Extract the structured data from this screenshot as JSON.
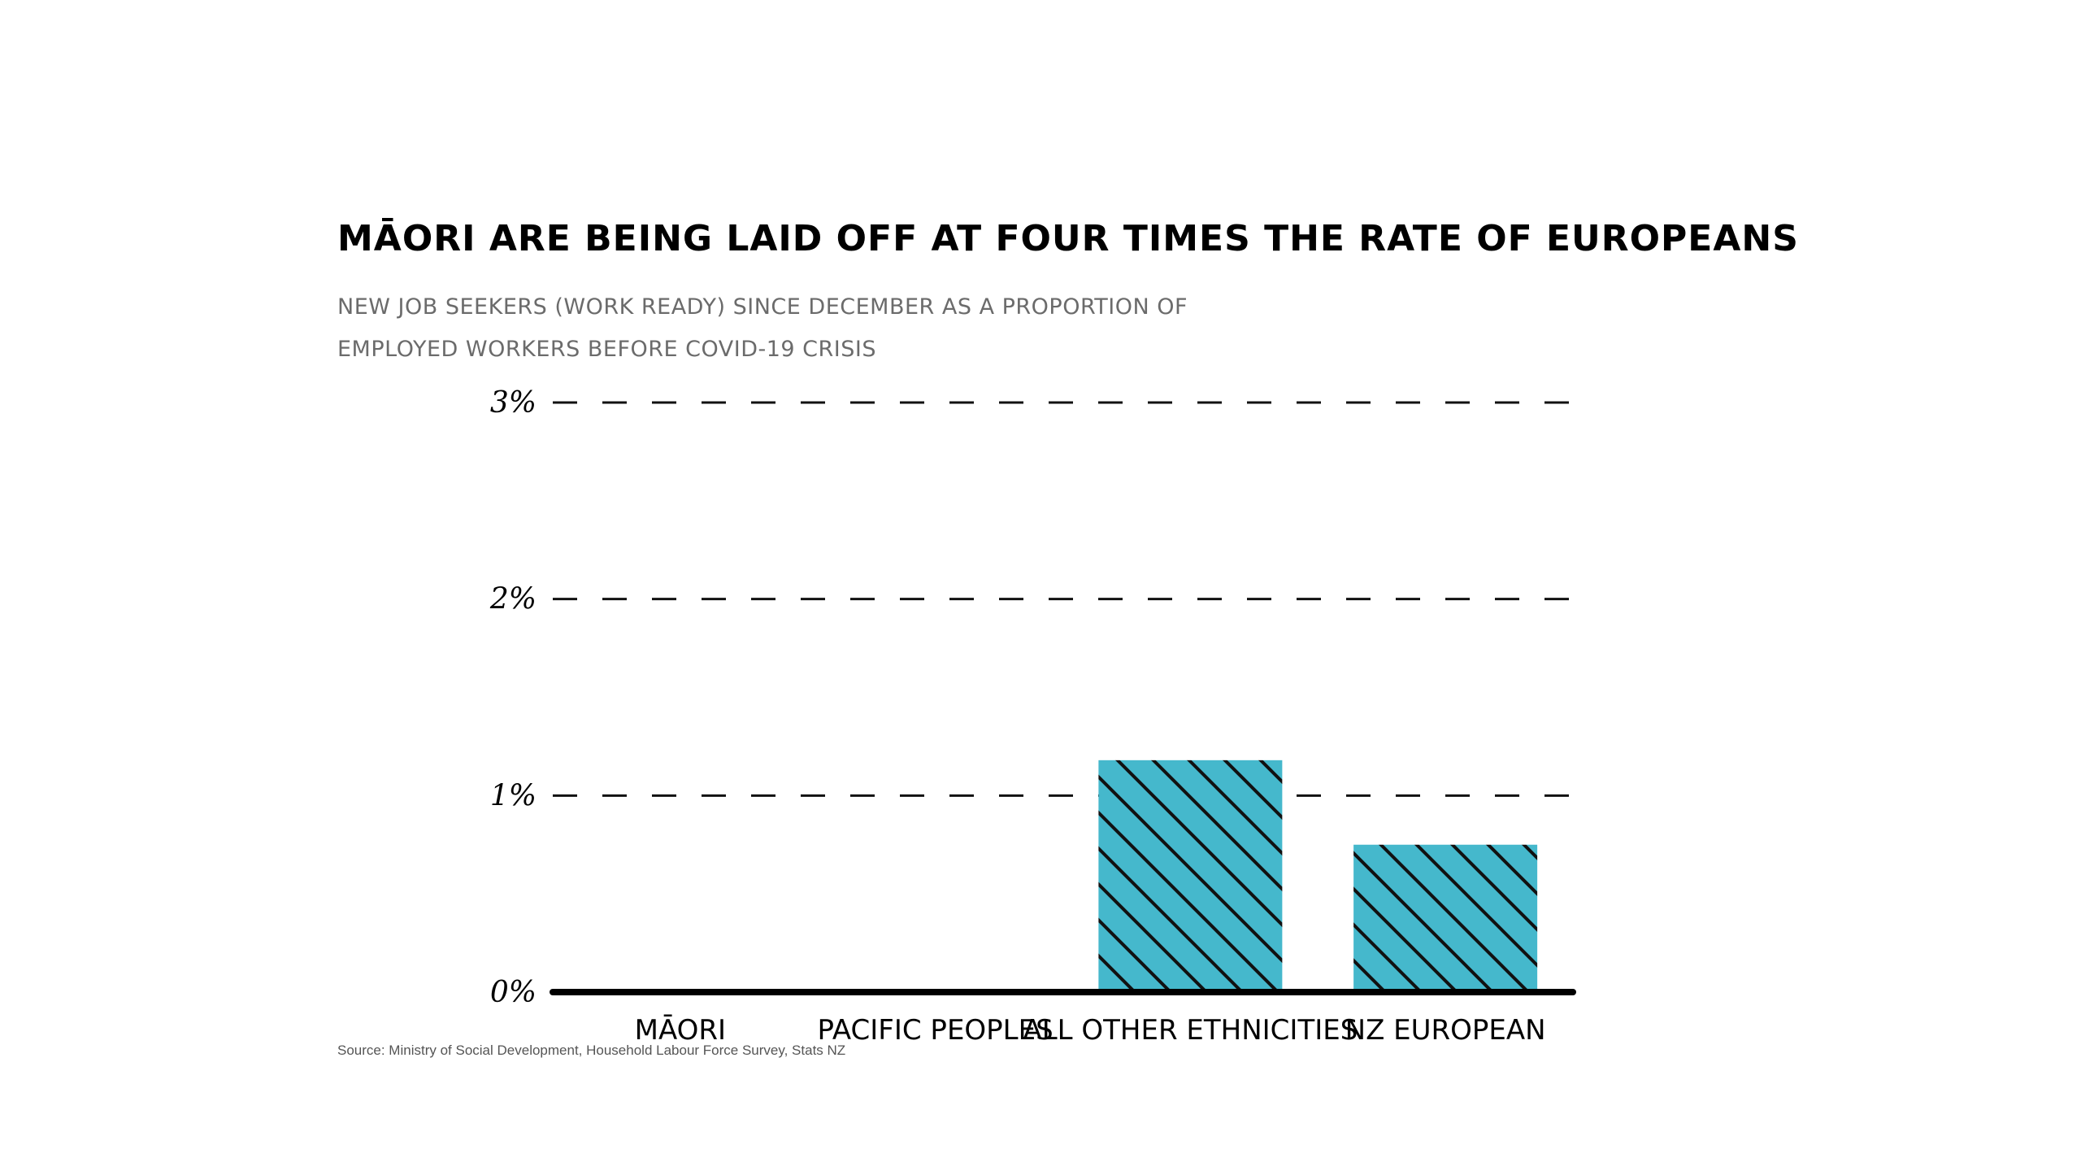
{
  "chart_data": {
    "type": "bar",
    "title": "Māori are being laid off at four times the rate of Europeans",
    "subtitle": "New job seekers (work ready) since December as a proportion of employed workers before COVID-19 crisis",
    "categories": [
      "Māori",
      "Pacific peoples",
      "All other ethnicities",
      "NZ European"
    ],
    "values": [
      0,
      0,
      1.18,
      0.75
    ],
    "ylim": [
      0,
      3
    ],
    "yticks": [
      0,
      1,
      2,
      3
    ],
    "ytick_labels": [
      "0%",
      "1%",
      "2%",
      "3%"
    ],
    "xlabel": "",
    "ylabel": "",
    "grid": true,
    "bar_color": "#45b8cc",
    "hatch": "diagonal",
    "source": "Source: Ministry of Social Development, Household Labour Force Survey, Stats NZ"
  }
}
